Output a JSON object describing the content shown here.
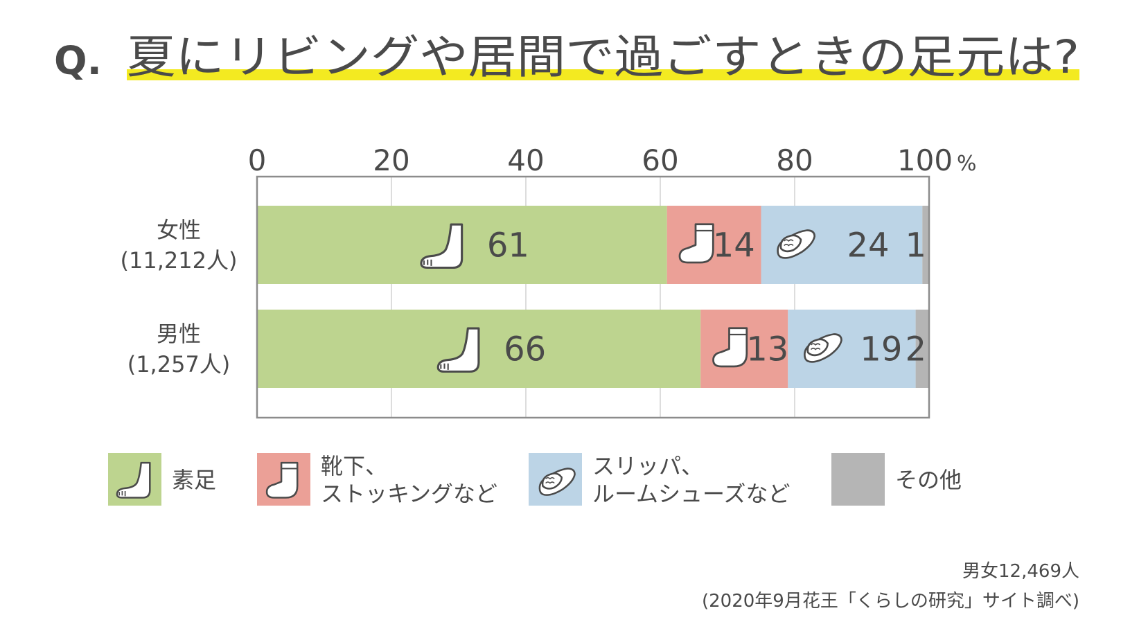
{
  "question": {
    "prefix": "Q.",
    "text": "夏にリビングや居間で過ごすときの足元は?"
  },
  "colors": {
    "highlight": "#f3ea21",
    "text": "#4a4a4a",
    "frame": "#8c8c8c",
    "grid": "#d2d2d2"
  },
  "chart_data": {
    "type": "bar",
    "orientation": "horizontal",
    "stacked": true,
    "xlim": [
      0,
      100
    ],
    "ticks": [
      {
        "value": 0,
        "label": "0"
      },
      {
        "value": 20,
        "label": "20"
      },
      {
        "value": 40,
        "label": "40"
      },
      {
        "value": 60,
        "label": "60"
      },
      {
        "value": 80,
        "label": "80"
      },
      {
        "value": 100,
        "label": "100"
      }
    ],
    "unit": "%",
    "grid": true,
    "categories": [
      {
        "line1": "女性",
        "line2": "(11,212人)"
      },
      {
        "line1": "男性",
        "line2": "(1,257人)"
      }
    ],
    "series": [
      {
        "name": "素足",
        "name_lines": [
          "素足"
        ],
        "icon": "bare-foot-icon",
        "color": "#bdd48f",
        "values": [
          61,
          66
        ]
      },
      {
        "name": "靴下、ストッキングなど",
        "name_lines": [
          "靴下、",
          "ストッキングなど"
        ],
        "icon": "sock-icon",
        "color": "#eba097",
        "values": [
          14,
          13
        ]
      },
      {
        "name": "スリッパ、ルームシューズなど",
        "name_lines": [
          "スリッパ、",
          "ルームシューズなど"
        ],
        "icon": "slipper-icon",
        "color": "#bcd4e6",
        "values": [
          24,
          19
        ]
      },
      {
        "name": "その他",
        "name_lines": [
          "その他"
        ],
        "icon": "",
        "color": "#b5b5b5",
        "values": [
          1,
          2
        ]
      }
    ]
  },
  "footnote": {
    "line1": "男女12,469人",
    "line2": "(2020年9月花王「くらしの研究」サイト調べ)"
  }
}
